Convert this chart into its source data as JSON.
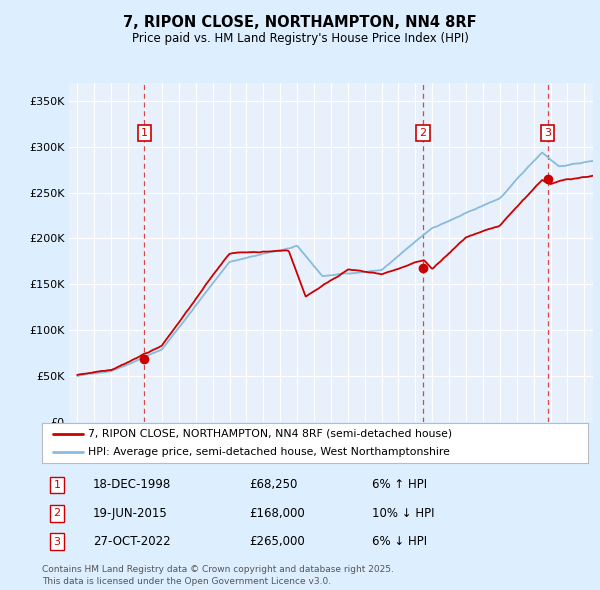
{
  "title1": "7, RIPON CLOSE, NORTHAMPTON, NN4 8RF",
  "title2": "Price paid vs. HM Land Registry's House Price Index (HPI)",
  "legend_line1": "7, RIPON CLOSE, NORTHAMPTON, NN4 8RF (semi-detached house)",
  "legend_line2": "HPI: Average price, semi-detached house, West Northamptonshire",
  "footer": "Contains HM Land Registry data © Crown copyright and database right 2025.\nThis data is licensed under the Open Government Licence v3.0.",
  "transactions": [
    {
      "label": "1",
      "date": "18-DEC-1998",
      "price": 68250,
      "hpi_note": "6% ↑ HPI",
      "year": 1998.96
    },
    {
      "label": "2",
      "date": "19-JUN-2015",
      "price": 168000,
      "hpi_note": "10% ↓ HPI",
      "year": 2015.46
    },
    {
      "label": "3",
      "date": "27-OCT-2022",
      "price": 265000,
      "hpi_note": "6% ↓ HPI",
      "year": 2022.82
    }
  ],
  "red_color": "#cc0000",
  "blue_color": "#88bbdd",
  "bg_color": "#ddeeff",
  "plot_bg": "#e8f0fb",
  "grid_color": "#ffffff",
  "ylim": [
    0,
    370000
  ],
  "yticks": [
    0,
    50000,
    100000,
    150000,
    200000,
    250000,
    300000,
    350000
  ],
  "xlim_start": 1994.5,
  "xlim_end": 2025.5
}
